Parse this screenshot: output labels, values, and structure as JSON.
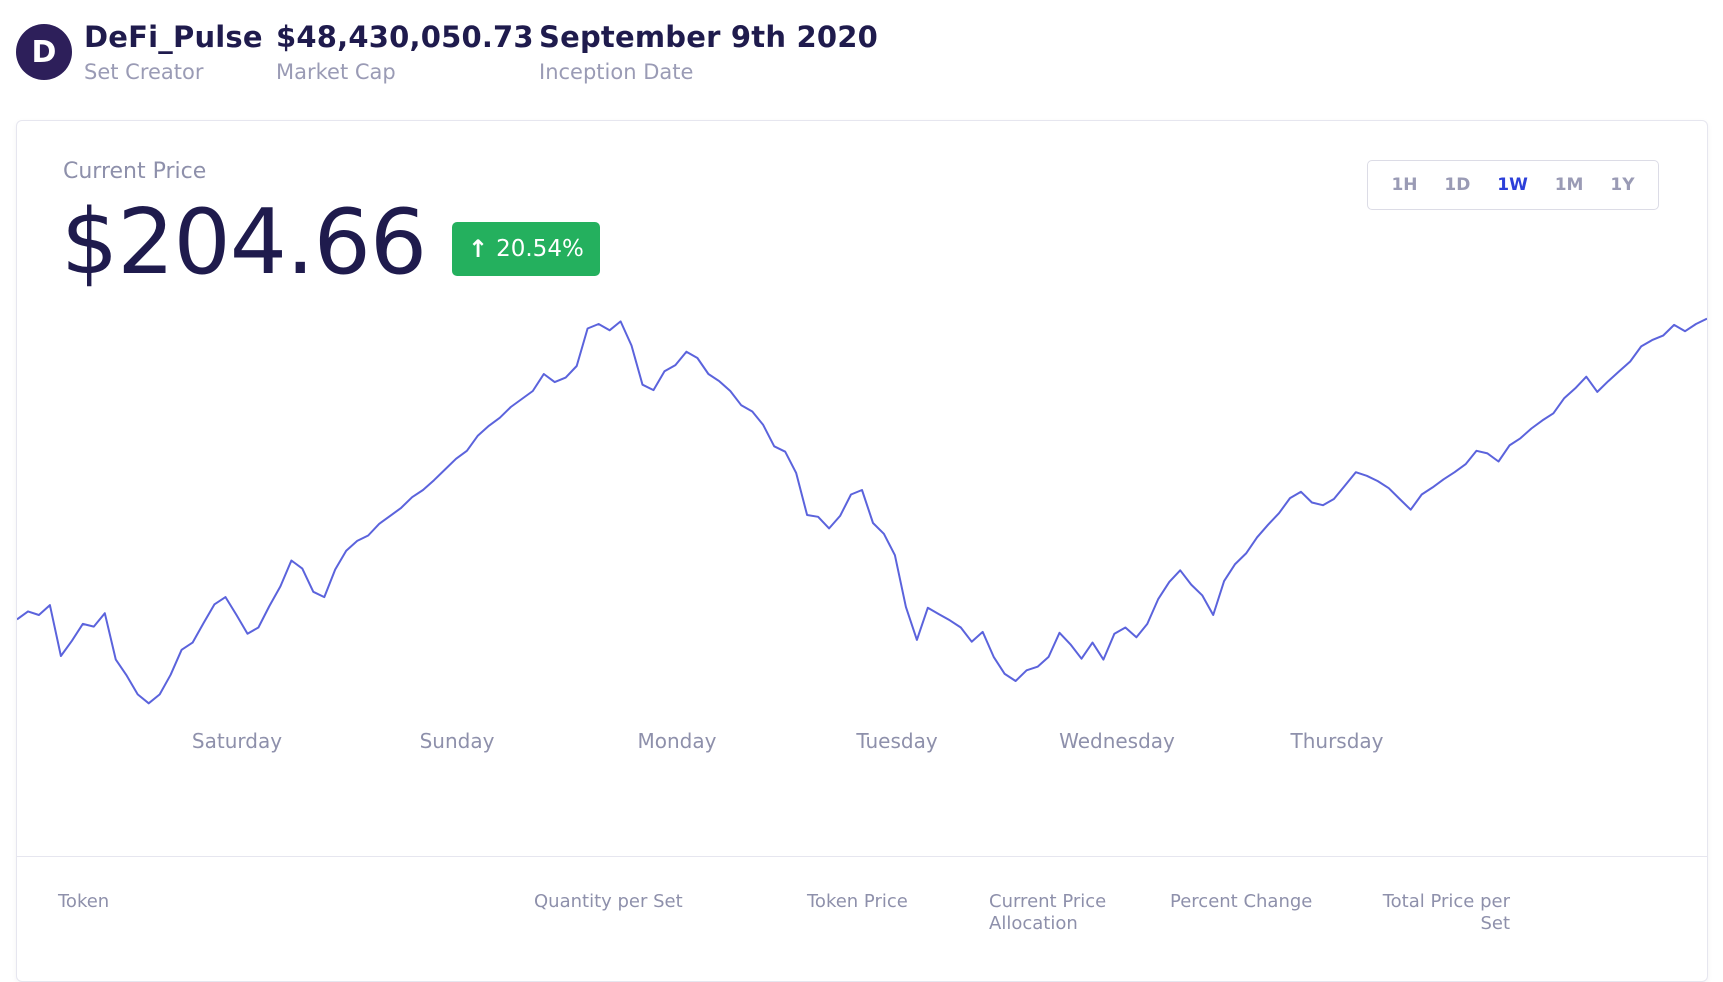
{
  "header": {
    "avatar_letter": "D",
    "creator": {
      "value": "DeFi_Pulse",
      "label": "Set Creator"
    },
    "market_cap": {
      "value": "$48,430,050.73",
      "label": "Market Cap"
    },
    "inception": {
      "value": "September 9th 2020",
      "label": "Inception Date"
    }
  },
  "price": {
    "label": "Current Price",
    "value": "$204.66",
    "change": "20.54%",
    "change_color": "#24b05e"
  },
  "ranges": [
    "1H",
    "1D",
    "1W",
    "1M",
    "1Y"
  ],
  "active_range": "1W",
  "table_headers": {
    "token": "Token",
    "quantity": "Quantity per Set",
    "token_price": "Token Price",
    "allocation_1": "Current Price",
    "allocation_2": "Allocation",
    "percent_change": "Percent Change",
    "total_1": "Total Price per",
    "total_2": "Set"
  },
  "chart_data": {
    "type": "line",
    "line_color": "#5b63dc",
    "grid": false,
    "x_labels": [
      "Saturday",
      "Sunday",
      "Monday",
      "Tuesday",
      "Wednesday",
      "Thursday"
    ],
    "series": [
      {
        "values": [
          179.5,
          180.4,
          180.0,
          181.1,
          175.4,
          177.1,
          179.0,
          178.7,
          180.2,
          175.0,
          173.2,
          171.1,
          170.1,
          171.1,
          173.3,
          176.1,
          176.9,
          179.1,
          181.2,
          182.0,
          180.0,
          177.9,
          178.6,
          181.0,
          183.2,
          186.1,
          185.2,
          182.6,
          182.0,
          185.1,
          187.2,
          188.3,
          188.9,
          190.2,
          191.1,
          192.0,
          193.2,
          194.0,
          195.1,
          196.3,
          197.5,
          198.4,
          200.1,
          201.2,
          202.1,
          203.3,
          204.2,
          205.1,
          207.0,
          206.1,
          206.6,
          207.9,
          212.1,
          212.6,
          211.9,
          212.9,
          210.2,
          205.8,
          205.2,
          207.3,
          208.0,
          209.5,
          208.8,
          207.0,
          206.2,
          205.1,
          203.5,
          202.8,
          201.3,
          198.9,
          198.3,
          195.9,
          191.2,
          191.0,
          189.7,
          191.1,
          193.5,
          194.0,
          190.3,
          189.1,
          186.7,
          180.9,
          177.2,
          180.8,
          180.1,
          179.4,
          178.6,
          177.0,
          178.1,
          175.3,
          173.4,
          172.6,
          173.8,
          174.2,
          175.3,
          178.0,
          176.7,
          175.1,
          176.9,
          175.0,
          177.9,
          178.6,
          177.5,
          179.0,
          181.8,
          183.7,
          185.0,
          183.4,
          182.2,
          180.0,
          183.8,
          185.7,
          186.9,
          188.7,
          190.1,
          191.4,
          193.1,
          193.8,
          192.6,
          192.3,
          193.0,
          194.5,
          196.0,
          195.6,
          195.0,
          194.2,
          193.0,
          191.8,
          193.5,
          194.3,
          195.2,
          196.0,
          196.9,
          198.4,
          198.1,
          197.2,
          199.0,
          199.8,
          200.9,
          201.8,
          202.6,
          204.3,
          205.4,
          206.7,
          205.0,
          206.2,
          207.3,
          208.4,
          210.1,
          210.8,
          211.3,
          212.5,
          211.8,
          212.6,
          213.2
        ]
      }
    ]
  }
}
